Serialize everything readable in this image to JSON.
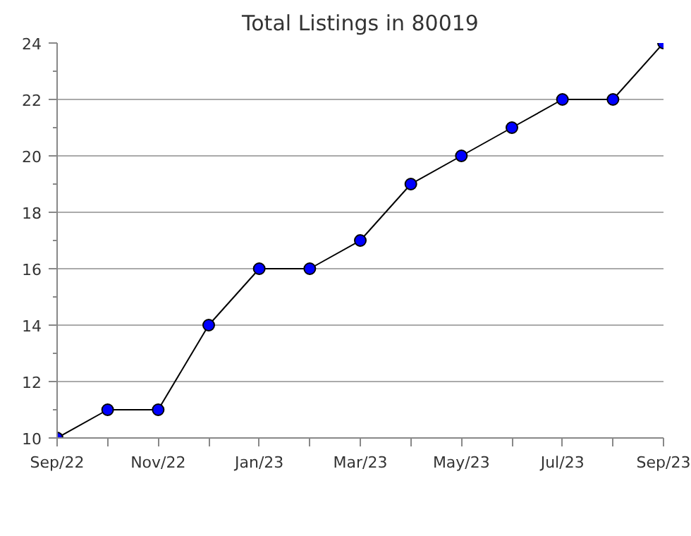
{
  "chart_data": {
    "type": "line",
    "title": "Total Listings in 80019",
    "categories": [
      "Sep/22",
      null,
      "Nov/22",
      null,
      "Jan/23",
      null,
      "Mar/23",
      null,
      "May/23",
      null,
      "Jul/23",
      null,
      "Sep/23"
    ],
    "series": [
      {
        "color": "#0000ff",
        "values": [
          10,
          11,
          11,
          14,
          16,
          16,
          17,
          19,
          20,
          21,
          22,
          22,
          24
        ]
      }
    ],
    "ylim": [
      10,
      24
    ],
    "yticks": [
      10,
      12,
      14,
      16,
      18,
      20,
      22,
      24
    ],
    "grid": "y",
    "marker": "circle",
    "line_style": "solid"
  }
}
